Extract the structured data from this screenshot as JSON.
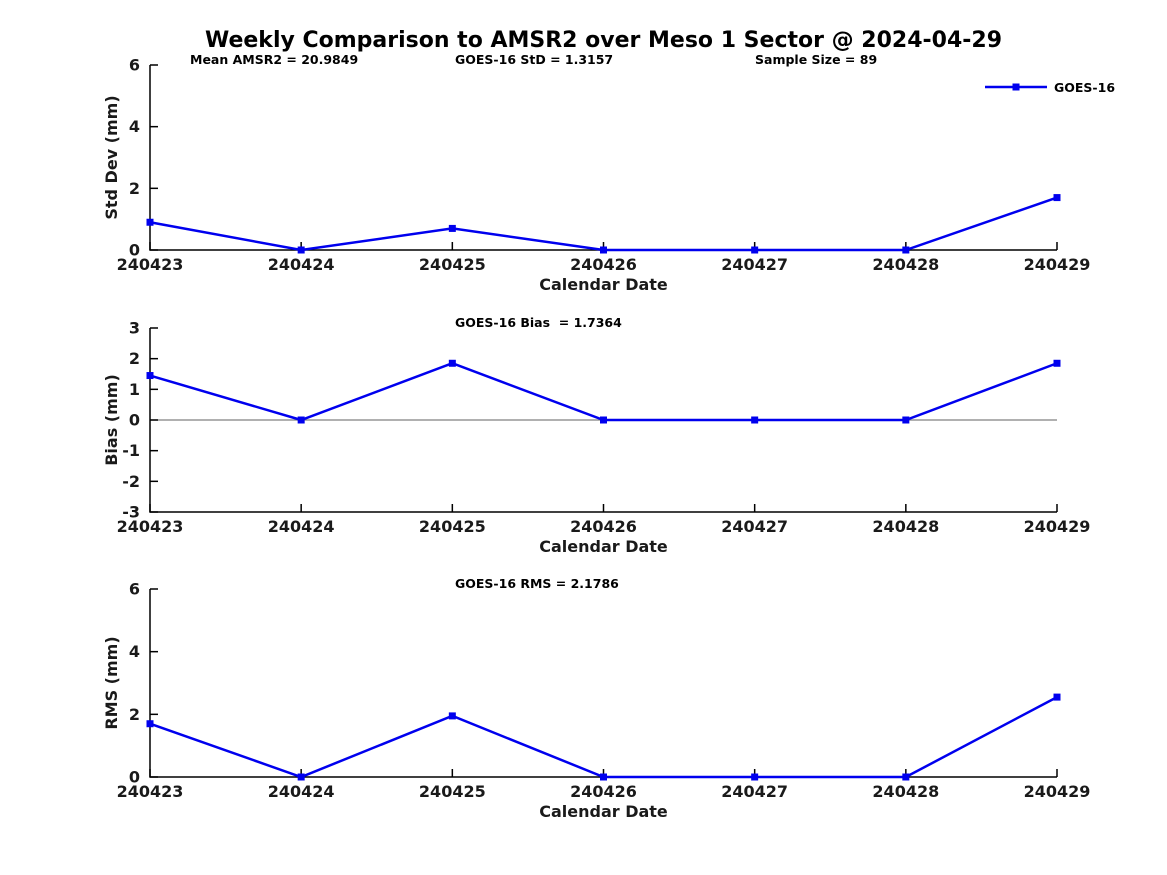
{
  "figure": {
    "title": "Weekly Comparison to AMSR2 over Meso 1 Sector @ 2024-04-29"
  },
  "legend": {
    "label": "GOES-16"
  },
  "colors": {
    "series": "#0000EE",
    "axis": "#000000",
    "zero_line": "#808080",
    "text": "#1a1a1a",
    "background": "#FFFFFF"
  },
  "chart_data": [
    {
      "type": "line",
      "name": "std-dev",
      "ylabel": "Std Dev (mm)",
      "xlabel": "Calendar Date",
      "ylim": [
        0,
        6
      ],
      "yticks": [
        0,
        2,
        4,
        6
      ],
      "categories": [
        "240423",
        "240424",
        "240425",
        "240426",
        "240427",
        "240428",
        "240429"
      ],
      "series": [
        {
          "name": "GOES-16",
          "values": [
            0.9,
            0.0,
            0.7,
            0.0,
            0.0,
            0.0,
            1.7
          ]
        }
      ],
      "annotations": [
        "Mean AMSR2 = 20.9849",
        "GOES-16 StD = 1.3157",
        "Sample Size = 89"
      ],
      "zero_line": false,
      "grid": false,
      "legend_position": "top-right-outside"
    },
    {
      "type": "line",
      "name": "bias",
      "ylabel": "Bias (mm)",
      "xlabel": "Calendar Date",
      "ylim": [
        -3,
        3
      ],
      "yticks": [
        -3,
        -2,
        -1,
        0,
        1,
        2,
        3
      ],
      "categories": [
        "240423",
        "240424",
        "240425",
        "240426",
        "240427",
        "240428",
        "240429"
      ],
      "series": [
        {
          "name": "GOES-16",
          "values": [
            1.45,
            0.0,
            1.85,
            0.0,
            0.0,
            0.0,
            1.85
          ]
        }
      ],
      "annotations": [
        "GOES-16 Bias  = 1.7364"
      ],
      "zero_line": true,
      "grid": false
    },
    {
      "type": "line",
      "name": "rms",
      "ylabel": "RMS (mm)",
      "xlabel": "Calendar Date",
      "ylim": [
        0,
        6
      ],
      "yticks": [
        0,
        2,
        4,
        6
      ],
      "categories": [
        "240423",
        "240424",
        "240425",
        "240426",
        "240427",
        "240428",
        "240429"
      ],
      "series": [
        {
          "name": "GOES-16",
          "values": [
            1.7,
            0.0,
            1.95,
            0.0,
            0.0,
            0.0,
            2.55
          ]
        }
      ],
      "annotations": [
        "GOES-16 RMS = 2.1786"
      ],
      "zero_line": false,
      "grid": false
    }
  ]
}
